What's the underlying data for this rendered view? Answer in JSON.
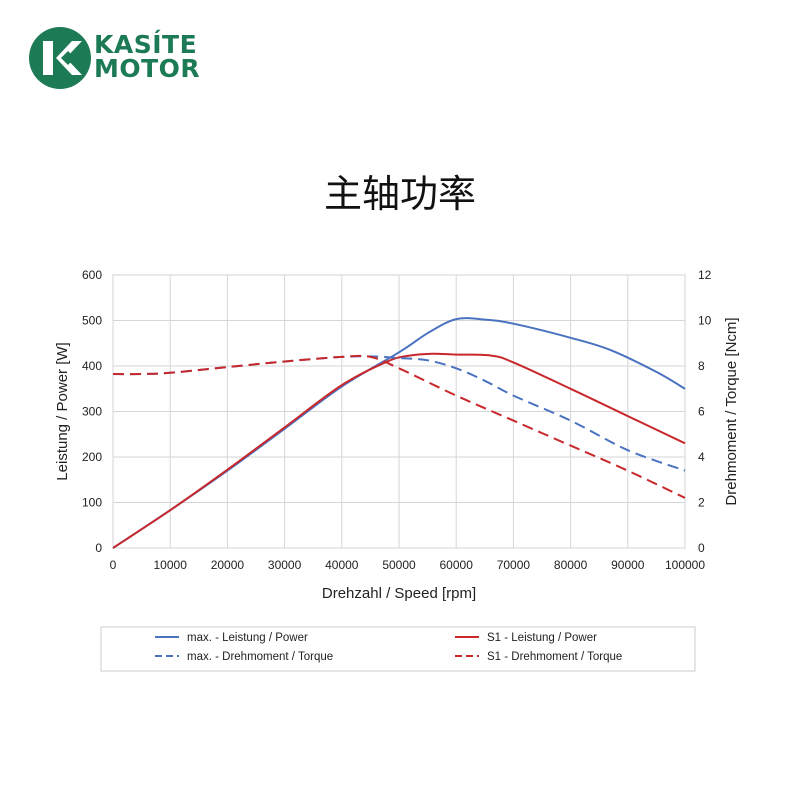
{
  "brand": {
    "name_line1": "KASÍTE",
    "name_line2": "MOTOR",
    "logo_icon": "kasite-k-logo-icon",
    "color": "#1c7a55"
  },
  "page_title": "主轴功率",
  "chart_data": {
    "type": "line",
    "title": "",
    "xlabel": "Drehzahl / Speed [rpm]",
    "ylabel": "Leistung / Power [W]",
    "y2label": "Drehmoment / Torque [Ncm]",
    "xlim": [
      0,
      100000
    ],
    "ylim": [
      0,
      600
    ],
    "y2lim": [
      0,
      12
    ],
    "xticks": [
      "0",
      "10000",
      "20000",
      "30000",
      "40000",
      "50000",
      "60000",
      "70000",
      "80000",
      "90000",
      "100000"
    ],
    "yticks": [
      "0",
      "100",
      "200",
      "300",
      "400",
      "500",
      "600"
    ],
    "y2ticks": [
      "0",
      "2",
      "4",
      "6",
      "8",
      "10",
      "12"
    ],
    "grid": true,
    "legend_position": "bottom",
    "series": [
      {
        "name": "max. - Leistung / Power",
        "axis": "left",
        "color": "#4a72c0",
        "dash": false,
        "x": [
          0,
          10000,
          20000,
          30000,
          40000,
          50000,
          55000,
          60000,
          65000,
          70000,
          80000,
          87000,
          95000,
          100000
        ],
        "y": [
          0,
          83,
          170,
          262,
          355,
          430,
          472,
          503,
          502,
          493,
          462,
          435,
          387,
          350
        ]
      },
      {
        "name": "S1 - Leistung / Power",
        "axis": "left",
        "color": "#c8282c",
        "dash": false,
        "x": [
          0,
          10000,
          20000,
          30000,
          40000,
          48000,
          52000,
          56000,
          60000,
          66000,
          70000,
          80000,
          90000,
          100000
        ],
        "y": [
          0,
          83,
          172,
          265,
          358,
          410,
          423,
          427,
          425,
          423,
          408,
          350,
          290,
          230
        ]
      },
      {
        "name": "max. - Drehmoment / Torque",
        "axis": "right",
        "color": "#4a72c0",
        "dash": true,
        "x": [
          0,
          5000,
          10000,
          20000,
          30000,
          40000,
          45000,
          50000,
          55000,
          60000,
          65000,
          70000,
          80000,
          90000,
          100000
        ],
        "y": [
          7.65,
          7.65,
          7.7,
          7.95,
          8.2,
          8.4,
          8.42,
          8.35,
          8.25,
          7.9,
          7.35,
          6.7,
          5.6,
          4.3,
          3.4
        ]
      },
      {
        "name": "S1 - Drehmoment / Torque",
        "axis": "right",
        "color": "#c8282c",
        "dash": true,
        "x": [
          0,
          5000,
          10000,
          20000,
          30000,
          40000,
          45000,
          50000,
          60000,
          70000,
          80000,
          90000,
          100000
        ],
        "y": [
          7.65,
          7.65,
          7.7,
          7.95,
          8.2,
          8.4,
          8.4,
          7.9,
          6.7,
          5.6,
          4.5,
          3.4,
          2.2
        ]
      }
    ]
  }
}
